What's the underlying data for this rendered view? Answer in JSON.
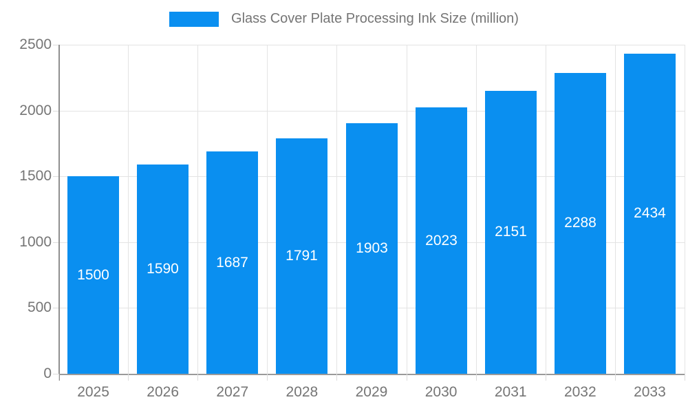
{
  "legend": {
    "label": "Glass Cover Plate Processing Ink Size (million)"
  },
  "colors": {
    "bar": "#0a8ff0",
    "bar_label_text": "#ffffff",
    "tick_text": "#757575",
    "grid_line": "#e3e3e3",
    "axis_line": "#8f8f8f",
    "background": "#ffffff"
  },
  "chart_data": {
    "type": "bar",
    "title": "Glass Cover Plate Processing Ink Size (million)",
    "categories": [
      "2025",
      "2026",
      "2027",
      "2028",
      "2029",
      "2030",
      "2031",
      "2032",
      "2033"
    ],
    "values": [
      1500,
      1590,
      1687,
      1791,
      1903,
      2023,
      2151,
      2288,
      2434
    ],
    "xlabel": "",
    "ylabel": "",
    "ylim": [
      0,
      2500
    ],
    "yticks": [
      0,
      500,
      1000,
      1500,
      2000,
      2500
    ],
    "grid": true,
    "legend_position": "top-center",
    "bar_label_position": "inside-middle"
  }
}
